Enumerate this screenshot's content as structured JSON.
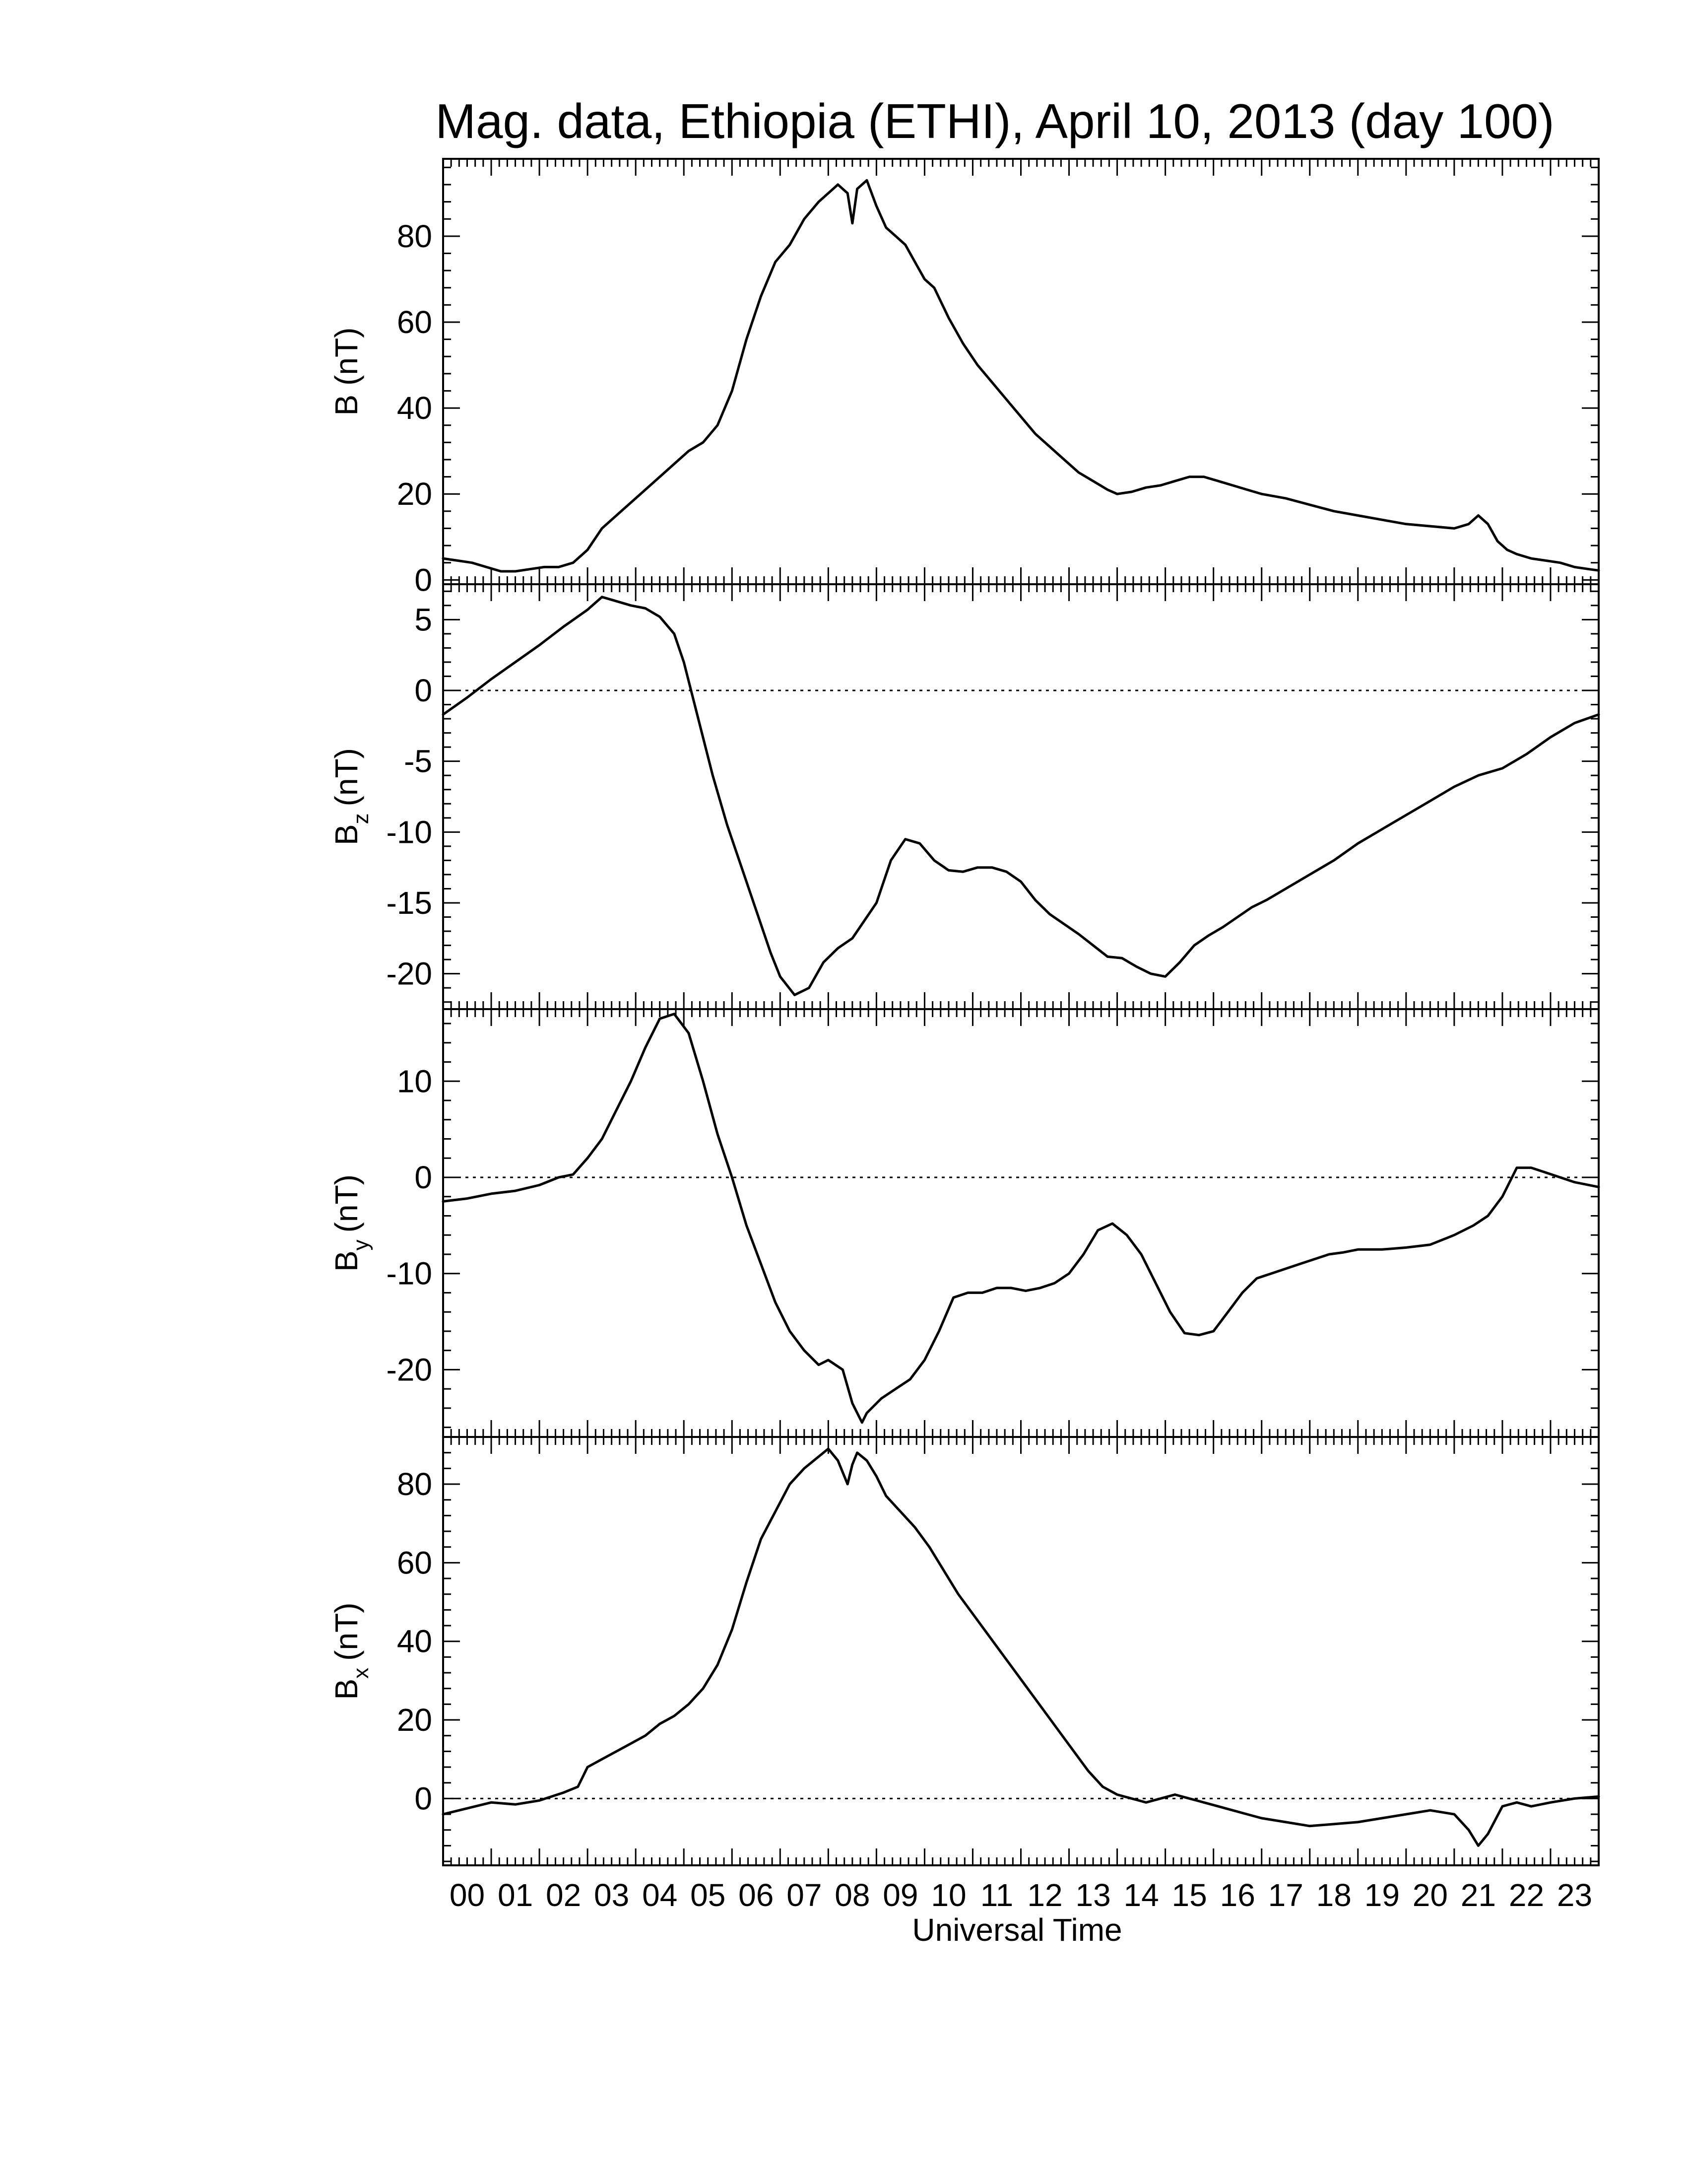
{
  "chart_data": {
    "type": "line",
    "title": "Mag. data, Ethiopia (ETHI), April 10, 2013 (day 100)",
    "xlabel": "Universal Time",
    "x_tick_labels": [
      "00",
      "01",
      "02",
      "03",
      "04",
      "05",
      "06",
      "07",
      "08",
      "09",
      "10",
      "11",
      "12",
      "13",
      "14",
      "15",
      "16",
      "17",
      "18",
      "19",
      "20",
      "21",
      "22",
      "23"
    ],
    "xlim": [
      0,
      24
    ],
    "panels": [
      {
        "ylabel": "B (nT)",
        "ylabel_base": "B",
        "ylabel_sub": "",
        "ylabel_unit": "(nT)",
        "ylim": [
          -1,
          98
        ],
        "yticks": [
          0,
          20,
          40,
          60,
          80
        ],
        "ytick_labels": [
          "0",
          "20",
          "40",
          "60",
          "80"
        ],
        "zero_line": false,
        "x": [
          0,
          0.3,
          0.6,
          0.9,
          1.2,
          1.5,
          1.8,
          2.1,
          2.4,
          2.7,
          3.0,
          3.3,
          3.6,
          3.9,
          4.2,
          4.5,
          4.8,
          5.1,
          5.4,
          5.7,
          6.0,
          6.3,
          6.6,
          6.9,
          7.2,
          7.5,
          7.8,
          8.0,
          8.2,
          8.4,
          8.5,
          8.6,
          8.8,
          9.0,
          9.2,
          9.4,
          9.6,
          9.8,
          10.0,
          10.2,
          10.5,
          10.8,
          11.1,
          11.4,
          11.7,
          12.0,
          12.3,
          12.6,
          12.9,
          13.2,
          13.5,
          13.8,
          14.0,
          14.3,
          14.6,
          14.9,
          15.2,
          15.5,
          15.8,
          16.1,
          16.4,
          16.7,
          17.0,
          17.5,
          18.0,
          18.5,
          19.0,
          19.5,
          20.0,
          20.5,
          21.0,
          21.3,
          21.5,
          21.7,
          21.9,
          22.1,
          22.3,
          22.6,
          22.9,
          23.2,
          23.5,
          23.8,
          24.0
        ],
        "y": [
          5,
          4.5,
          4,
          3,
          2,
          2,
          2.5,
          3,
          3,
          4,
          7,
          12,
          15,
          18,
          21,
          24,
          27,
          30,
          32,
          36,
          44,
          56,
          66,
          74,
          78,
          84,
          88,
          90,
          92,
          90,
          83,
          91,
          93,
          87,
          82,
          80,
          78,
          74,
          70,
          68,
          61,
          55,
          50,
          46,
          42,
          38,
          34,
          31,
          28,
          25,
          23,
          21,
          20,
          20.5,
          21.5,
          22,
          23,
          24,
          24,
          23,
          22,
          21,
          20,
          19,
          17.5,
          16,
          15,
          14,
          13,
          12.5,
          12,
          13,
          15,
          13,
          9,
          7,
          6,
          5,
          4.5,
          4,
          3,
          2.5,
          2.2
        ]
      },
      {
        "ylabel": "Bz (nT)",
        "ylabel_base": "B",
        "ylabel_sub": "z",
        "ylabel_unit": "(nT)",
        "ylim": [
          -22.5,
          7.5
        ],
        "yticks": [
          -20,
          -15,
          -10,
          -5,
          0,
          5
        ],
        "ytick_labels": [
          "-20",
          "-15",
          "-10",
          "-5",
          "0",
          "5"
        ],
        "zero_line": true,
        "x": [
          0,
          0.5,
          1.0,
          1.5,
          2.0,
          2.5,
          3.0,
          3.3,
          3.6,
          3.9,
          4.2,
          4.5,
          4.8,
          5.0,
          5.3,
          5.6,
          5.9,
          6.2,
          6.5,
          6.8,
          7.0,
          7.3,
          7.6,
          7.9,
          8.2,
          8.5,
          8.7,
          9.0,
          9.3,
          9.6,
          9.9,
          10.2,
          10.5,
          10.8,
          11.1,
          11.4,
          11.7,
          12.0,
          12.3,
          12.6,
          12.9,
          13.2,
          13.5,
          13.8,
          14.1,
          14.4,
          14.7,
          15.0,
          15.3,
          15.6,
          15.9,
          16.2,
          16.5,
          16.8,
          17.1,
          17.5,
          18.0,
          18.5,
          19.0,
          19.5,
          20.0,
          20.5,
          21.0,
          21.5,
          22.0,
          22.5,
          23.0,
          23.5,
          24.0
        ],
        "y": [
          -1.7,
          -0.5,
          0.8,
          2,
          3.2,
          4.5,
          5.7,
          6.6,
          6.3,
          6,
          5.8,
          5.2,
          4,
          2,
          -2,
          -6,
          -9.5,
          -12.5,
          -15.5,
          -18.5,
          -20.2,
          -21.5,
          -21,
          -19.2,
          -18.2,
          -17.5,
          -16.5,
          -15,
          -12,
          -10.5,
          -10.8,
          -12,
          -12.7,
          -12.8,
          -12.5,
          -12.5,
          -12.8,
          -13.5,
          -14.8,
          -15.8,
          -16.5,
          -17.2,
          -18,
          -18.8,
          -18.9,
          -19.5,
          -20,
          -20.2,
          -19.2,
          -18,
          -17.3,
          -16.7,
          -16,
          -15.3,
          -14.8,
          -14,
          -13,
          -12,
          -10.8,
          -9.8,
          -8.8,
          -7.8,
          -6.8,
          -6,
          -5.5,
          -4.5,
          -3.3,
          -2.3,
          -1.7
        ]
      },
      {
        "ylabel": "By (nT)",
        "ylabel_base": "B",
        "ylabel_sub": "y",
        "ylabel_unit": "(nT)",
        "ylim": [
          -27,
          17.5
        ],
        "yticks": [
          -20,
          -10,
          0,
          10
        ],
        "ytick_labels": [
          "-20",
          "-10",
          "0",
          "10"
        ],
        "zero_line": true,
        "x": [
          0,
          0.5,
          1.0,
          1.5,
          2.0,
          2.4,
          2.7,
          3.0,
          3.3,
          3.6,
          3.9,
          4.2,
          4.5,
          4.8,
          5.1,
          5.4,
          5.7,
          6.0,
          6.3,
          6.6,
          6.9,
          7.2,
          7.5,
          7.8,
          8.0,
          8.3,
          8.5,
          8.7,
          8.8,
          9.1,
          9.4,
          9.7,
          10.0,
          10.3,
          10.6,
          10.9,
          11.2,
          11.5,
          11.8,
          12.1,
          12.4,
          12.7,
          13.0,
          13.3,
          13.6,
          13.9,
          14.2,
          14.5,
          14.8,
          15.1,
          15.4,
          15.7,
          16.0,
          16.3,
          16.6,
          16.9,
          17.2,
          17.5,
          17.8,
          18.1,
          18.4,
          18.7,
          19.0,
          19.5,
          20.0,
          20.5,
          21.0,
          21.4,
          21.7,
          22.0,
          22.3,
          22.6,
          22.9,
          23.2,
          23.5,
          24.0
        ],
        "y": [
          -2.5,
          -2.2,
          -1.7,
          -1.4,
          -0.8,
          0,
          0.3,
          2,
          4,
          7,
          10,
          13.5,
          16.5,
          17,
          15,
          10,
          4.5,
          0,
          -5,
          -9,
          -13,
          -16,
          -18,
          -19.5,
          -19,
          -20,
          -23.5,
          -25.5,
          -24.5,
          -23,
          -22,
          -21,
          -19,
          -16,
          -12.5,
          -12,
          -12,
          -11.5,
          -11.5,
          -11.8,
          -11.5,
          -11,
          -10,
          -8,
          -5.5,
          -4.8,
          -6,
          -8,
          -11,
          -14,
          -16.2,
          -16.4,
          -16,
          -14,
          -12,
          -10.5,
          -10,
          -9.5,
          -9,
          -8.5,
          -8,
          -7.8,
          -7.5,
          -7.5,
          -7.3,
          -7,
          -6,
          -5,
          -4,
          -2,
          1,
          1,
          0.5,
          0,
          -0.5,
          -1
        ]
      },
      {
        "ylabel": "Bx (nT)",
        "ylabel_base": "B",
        "ylabel_sub": "x",
        "ylabel_unit": "(nT)",
        "ylim": [
          -17,
          92
        ],
        "yticks": [
          0,
          20,
          40,
          60,
          80
        ],
        "ytick_labels": [
          "0",
          "20",
          "40",
          "60",
          "80"
        ],
        "zero_line": true,
        "x": [
          0,
          0.5,
          1.0,
          1.5,
          2.0,
          2.5,
          2.8,
          3.0,
          3.3,
          3.6,
          3.9,
          4.2,
          4.5,
          4.8,
          5.1,
          5.4,
          5.7,
          6.0,
          6.3,
          6.6,
          6.9,
          7.2,
          7.5,
          7.8,
          8.0,
          8.2,
          8.4,
          8.5,
          8.6,
          8.8,
          9.0,
          9.2,
          9.5,
          9.8,
          10.1,
          10.4,
          10.7,
          11.0,
          11.3,
          11.6,
          11.9,
          12.2,
          12.5,
          12.8,
          13.1,
          13.4,
          13.7,
          14.0,
          14.3,
          14.6,
          14.9,
          15.2,
          15.5,
          15.8,
          16.1,
          16.4,
          16.7,
          17.0,
          17.5,
          18.0,
          18.5,
          19.0,
          19.5,
          20.0,
          20.5,
          21.0,
          21.3,
          21.5,
          21.7,
          22.0,
          22.3,
          22.6,
          23.0,
          23.5,
          24.0
        ],
        "y": [
          -4,
          -2.5,
          -1,
          -1.5,
          -0.5,
          1.5,
          3,
          8,
          10,
          12,
          14,
          16,
          19,
          21,
          24,
          28,
          34,
          43,
          55,
          66,
          73,
          80,
          84,
          87,
          89,
          86,
          80,
          85,
          88,
          86,
          82,
          77,
          73,
          69,
          64,
          58,
          52,
          47,
          42,
          37,
          32,
          27,
          22,
          17,
          12,
          7,
          3,
          1,
          0,
          -1,
          0,
          1,
          0,
          -1,
          -2,
          -3,
          -4,
          -5,
          -6,
          -7,
          -6.5,
          -6,
          -5,
          -4,
          -3,
          -4,
          -8,
          -12,
          -9,
          -2,
          -1,
          -2,
          -1,
          0,
          0.5
        ]
      }
    ]
  }
}
